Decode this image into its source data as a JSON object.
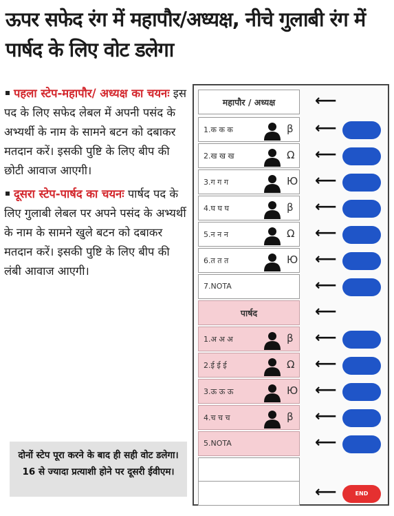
{
  "headline": "ऊपर सफेद रंग में महापौर/अध्यक्ष, नीचे गुलाबी रंग में पार्षद के लिए वोट डलेगा",
  "step1": {
    "title": "पहला स्टेप-महापौर/ अध्यक्ष का चयनः",
    "body": "इस पद के लिए सफेद लेबल में अपनी पसंद के अभ्यर्थी के नाम के सामने बटन को दबाकर मतदान करें। इसकी पुष्टि के लिए बीप की छोटी आवाज आएगी।"
  },
  "step2": {
    "title": "दूसरा स्टेप-पार्षद का चयनः",
    "body": "पार्षद पद के लिए गुलाबी लेबल पर अपने पसंद के अभ्यर्थी के नाम के सामने खुले बटन को दबाकर मतदान करें। इसकी पुष्टि के लिए बीप की लंबी आवाज आएगी।"
  },
  "note": "दोनों स्टेप पूरा करने के बाद ही सही वोट डलेगा। 16 से ज्यादा प्रत्याशी होने पर दूसरी ईवीएम।",
  "mayor": {
    "header": "महापौर / अध्यक्ष",
    "candidates": [
      {
        "name": "1.क क क",
        "symbol": "β"
      },
      {
        "name": "2.ख ख ख",
        "symbol": "Ω"
      },
      {
        "name": "3.ग ग ग",
        "symbol": "Ю"
      },
      {
        "name": "4.घ घ घ",
        "symbol": "β"
      },
      {
        "name": "5.न न न",
        "symbol": "Ω"
      },
      {
        "name": "6.त त त",
        "symbol": "Ю"
      },
      {
        "name": "7.NOTA",
        "symbol": ""
      }
    ]
  },
  "councillor": {
    "header": "पार्षद",
    "candidates": [
      {
        "name": "1.अ अ अ",
        "symbol": "β"
      },
      {
        "name": "2.ई ई ई",
        "symbol": "Ω"
      },
      {
        "name": "3.ऊ ऊ ऊ",
        "symbol": "Ю"
      },
      {
        "name": "4.च च च",
        "symbol": "β"
      },
      {
        "name": "5.NOTA",
        "symbol": ""
      }
    ]
  },
  "end_label": "END",
  "colors": {
    "button": "#1f55c8",
    "end_button": "#e53030",
    "pink": "#f6cfd4",
    "accent": "#d3262c"
  }
}
